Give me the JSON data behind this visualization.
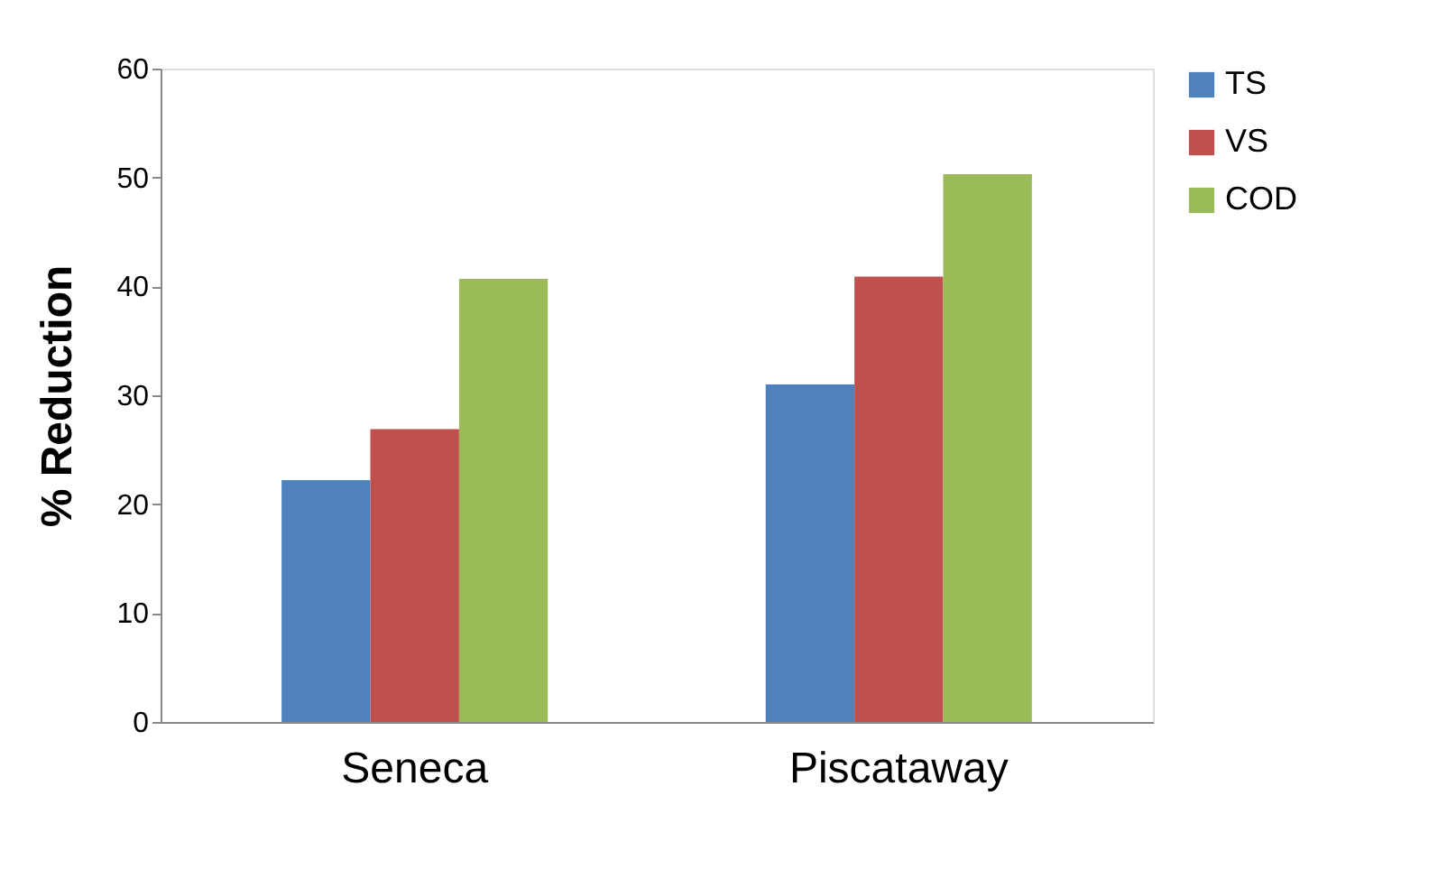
{
  "chart_data": {
    "type": "bar",
    "ylabel": "% Reduction",
    "categories": [
      "Seneca",
      "Piscataway"
    ],
    "series": [
      {
        "name": "TS",
        "color": "#4f81bd",
        "values": [
          22.2,
          31.0
        ]
      },
      {
        "name": "VS",
        "color": "#c0504d",
        "values": [
          26.9,
          40.9
        ]
      },
      {
        "name": "COD",
        "color": "#9bbb59",
        "values": [
          40.7,
          50.3
        ]
      }
    ],
    "ylim": [
      0,
      60
    ],
    "yticks": [
      0,
      10,
      20,
      30,
      40,
      50,
      60
    ],
    "grid": false,
    "legend": "right"
  }
}
